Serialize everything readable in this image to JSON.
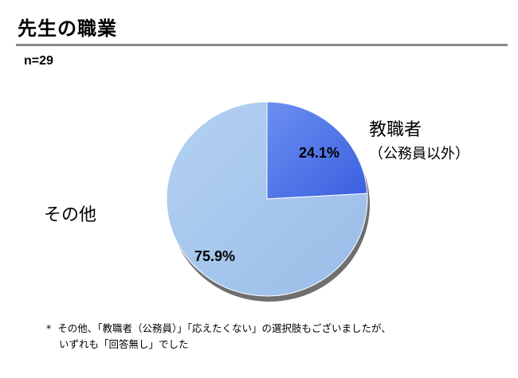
{
  "title": "先生の職業",
  "sample_size": "n=29",
  "chart_data": {
    "type": "pie",
    "title": "",
    "slices": [
      {
        "label": "教職者",
        "sublabel": "（公務員以外）",
        "value": 24.1,
        "value_label": "24.1%",
        "color": "#4a72e6"
      },
      {
        "label": "その他",
        "sublabel": "",
        "value": 75.9,
        "value_label": "75.9%",
        "color": "#a4c6ec"
      }
    ],
    "start_angle": "12 o'clock",
    "direction": "clockwise"
  },
  "footnote": {
    "marker": "*",
    "line1": "その他、「教職者（公務員）」「応えたくない」の選択肢もございましたが、",
    "line2": "いずれも「回答無し」でした"
  }
}
